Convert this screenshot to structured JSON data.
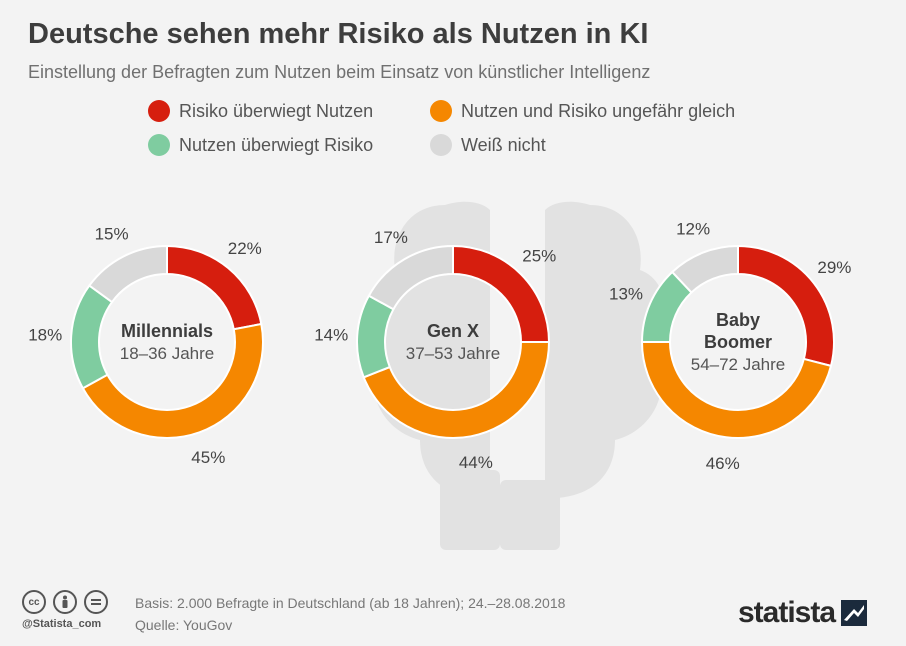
{
  "header": {
    "title": "Deutsche sehen mehr Risiko als Nutzen in KI",
    "subtitle": "Einstellung der Befragten zum Nutzen beim Einsatz von künstlicher Intelligenz"
  },
  "legend": [
    {
      "label": "Risiko überwiegt Nutzen",
      "color": "#d61e0e"
    },
    {
      "label": "Nutzen und Risiko ungefähr gleich",
      "color": "#f58700"
    },
    {
      "label": "Nutzen überwiegt Risiko",
      "color": "#7fcca0"
    },
    {
      "label": "Weiß nicht",
      "color": "#d9d9d9"
    }
  ],
  "chart_data": {
    "type": "pie",
    "title": "Deutsche sehen mehr Risiko als Nutzen in KI",
    "categories": [
      "Risiko überwiegt Nutzen",
      "Nutzen und Risiko ungefähr gleich",
      "Nutzen überwiegt Risiko",
      "Weiß nicht"
    ],
    "unit": "%",
    "series": [
      {
        "name": "Millennials",
        "label_lines": [
          "Millennials"
        ],
        "age": "18–36 Jahre",
        "values": [
          22,
          45,
          18,
          15
        ]
      },
      {
        "name": "Gen X",
        "label_lines": [
          "Gen X"
        ],
        "age": "37–53 Jahre",
        "values": [
          25,
          44,
          14,
          17
        ]
      },
      {
        "name": "Baby Boomer",
        "label_lines": [
          "Baby",
          "Boomer"
        ],
        "age": "54–72 Jahre",
        "values": [
          29,
          46,
          13,
          12
        ]
      }
    ]
  },
  "footer": {
    "basis": "Basis: 2.000 Befragte in Deutschland (ab 18 Jahren); 24.–28.08.2018",
    "source": "Quelle: YouGov",
    "handle": "@Statista_com",
    "brand": "statista",
    "icons": [
      "cc-icon",
      "by-icon",
      "nd-icon"
    ]
  }
}
